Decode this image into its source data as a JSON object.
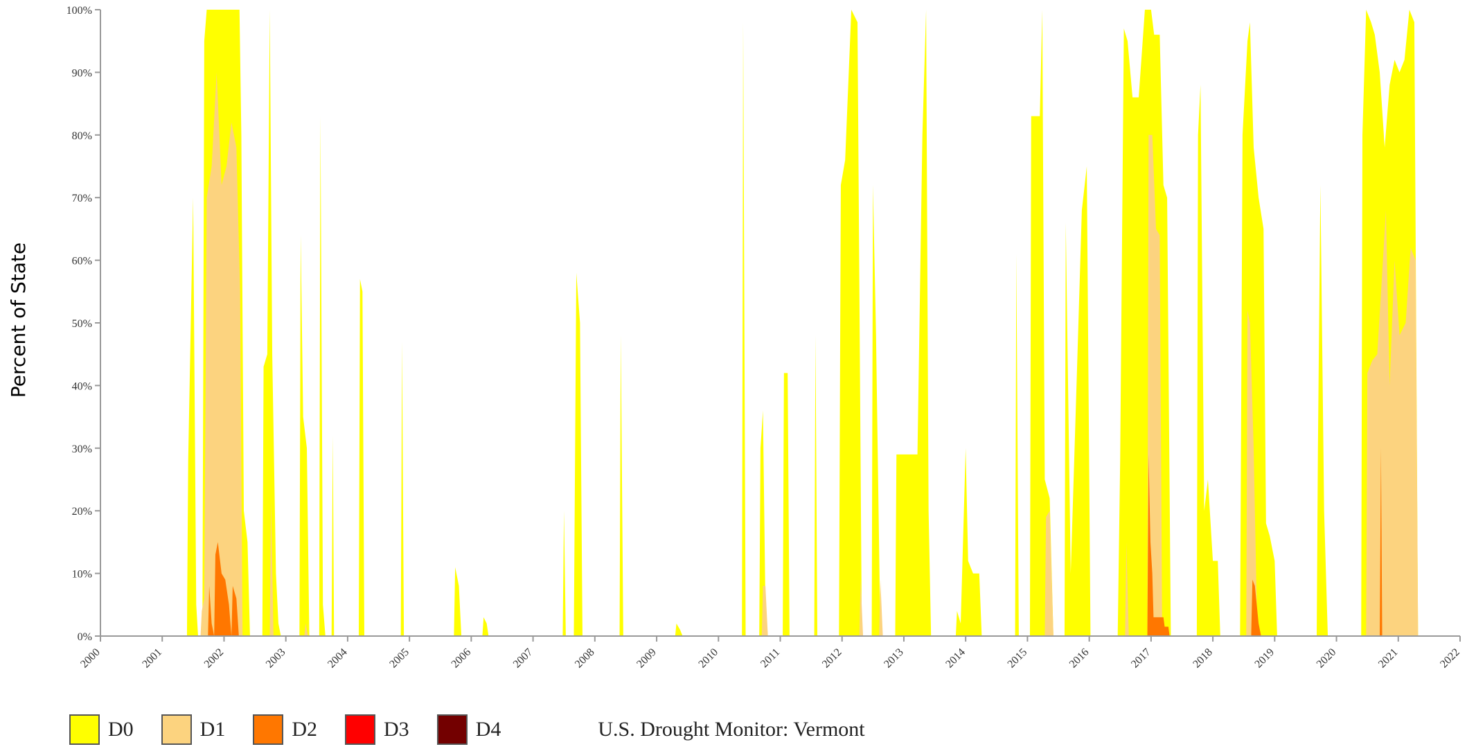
{
  "chart_data": {
    "type": "area",
    "title": "U.S. Drought Monitor: Vermont",
    "ylabel": "Percent of State",
    "xlabel": "",
    "xlim": [
      2000,
      2022
    ],
    "ylim": [
      0,
      100
    ],
    "x_ticks": [
      "2000",
      "2001",
      "2002",
      "2003",
      "2004",
      "2005",
      "2006",
      "2007",
      "2008",
      "2009",
      "2010",
      "2011",
      "2012",
      "2013",
      "2014",
      "2015",
      "2016",
      "2017",
      "2018",
      "2019",
      "2020",
      "2021",
      "2022"
    ],
    "y_ticks": [
      "0%",
      "10%",
      "20%",
      "30%",
      "40%",
      "50%",
      "60%",
      "70%",
      "80%",
      "90%",
      "100%"
    ],
    "legend_position": "bottom",
    "grid": false,
    "colors": {
      "D0": "#ffff00",
      "D1": "#fcd37f",
      "D2": "#ff7700",
      "D3": "#ff0000",
      "D4": "#730000"
    },
    "series": [
      {
        "name": "D0",
        "points": [
          [
            2001.4,
            0
          ],
          [
            2001.42,
            28
          ],
          [
            2001.5,
            70
          ],
          [
            2001.55,
            5
          ],
          [
            2001.58,
            0
          ],
          [
            2001.65,
            0
          ],
          [
            2001.68,
            95
          ],
          [
            2001.72,
            100
          ],
          [
            2002.25,
            100
          ],
          [
            2002.28,
            80
          ],
          [
            2002.32,
            20
          ],
          [
            2002.38,
            15
          ],
          [
            2002.42,
            0
          ],
          [
            2002.62,
            0
          ],
          [
            2002.64,
            43
          ],
          [
            2002.7,
            45
          ],
          [
            2002.74,
            100
          ],
          [
            2002.78,
            45
          ],
          [
            2002.84,
            10
          ],
          [
            2002.88,
            2
          ],
          [
            2002.92,
            0
          ],
          [
            2003.22,
            0
          ],
          [
            2003.24,
            64
          ],
          [
            2003.28,
            35
          ],
          [
            2003.34,
            30
          ],
          [
            2003.38,
            0
          ],
          [
            2003.54,
            0
          ],
          [
            2003.56,
            83
          ],
          [
            2003.6,
            5
          ],
          [
            2003.64,
            0
          ],
          [
            2003.74,
            0
          ],
          [
            2003.76,
            32
          ],
          [
            2003.78,
            0
          ],
          [
            2004.18,
            0
          ],
          [
            2004.2,
            57
          ],
          [
            2004.24,
            55
          ],
          [
            2004.27,
            0
          ],
          [
            2004.86,
            0
          ],
          [
            2004.88,
            47
          ],
          [
            2004.91,
            0
          ],
          [
            2005.72,
            0
          ],
          [
            2005.74,
            11
          ],
          [
            2005.8,
            8
          ],
          [
            2005.84,
            0
          ],
          [
            2006.18,
            0
          ],
          [
            2006.2,
            3
          ],
          [
            2006.25,
            2
          ],
          [
            2006.28,
            0
          ],
          [
            2007.48,
            0
          ],
          [
            2007.5,
            20
          ],
          [
            2007.53,
            0
          ],
          [
            2007.66,
            0
          ],
          [
            2007.7,
            58
          ],
          [
            2007.76,
            50
          ],
          [
            2007.8,
            0
          ],
          [
            2008.4,
            0
          ],
          [
            2008.42,
            48
          ],
          [
            2008.46,
            0
          ],
          [
            2009.3,
            0
          ],
          [
            2009.32,
            2
          ],
          [
            2009.38,
            1
          ],
          [
            2009.42,
            0
          ],
          [
            2010.38,
            0
          ],
          [
            2010.4,
            98
          ],
          [
            2010.44,
            0
          ],
          [
            2010.66,
            0
          ],
          [
            2010.68,
            30
          ],
          [
            2010.72,
            36
          ],
          [
            2010.76,
            5
          ],
          [
            2010.8,
            0
          ],
          [
            2011.04,
            0
          ],
          [
            2011.06,
            42
          ],
          [
            2011.12,
            42
          ],
          [
            2011.15,
            0
          ],
          [
            2011.55,
            0
          ],
          [
            2011.57,
            48
          ],
          [
            2011.6,
            0
          ],
          [
            2011.95,
            0
          ],
          [
            2011.98,
            72
          ],
          [
            2012.05,
            76
          ],
          [
            2012.15,
            100
          ],
          [
            2012.25,
            98
          ],
          [
            2012.32,
            0
          ],
          [
            2012.48,
            0
          ],
          [
            2012.5,
            72
          ],
          [
            2012.55,
            48
          ],
          [
            2012.62,
            0
          ],
          [
            2012.86,
            0
          ],
          [
            2012.88,
            29
          ],
          [
            2013.22,
            29
          ],
          [
            2013.3,
            80
          ],
          [
            2013.36,
            100
          ],
          [
            2013.4,
            20
          ],
          [
            2013.44,
            0
          ],
          [
            2013.84,
            0
          ],
          [
            2013.86,
            4
          ],
          [
            2013.92,
            2
          ],
          [
            2014.0,
            30
          ],
          [
            2014.04,
            12
          ],
          [
            2014.12,
            10
          ],
          [
            2014.22,
            10
          ],
          [
            2014.26,
            0
          ],
          [
            2014.8,
            0
          ],
          [
            2014.82,
            61
          ],
          [
            2014.86,
            0
          ],
          [
            2015.04,
            0
          ],
          [
            2015.06,
            83
          ],
          [
            2015.2,
            83
          ],
          [
            2015.24,
            100
          ],
          [
            2015.28,
            25
          ],
          [
            2015.36,
            22
          ],
          [
            2015.42,
            0
          ],
          [
            2015.6,
            0
          ],
          [
            2015.62,
            66
          ],
          [
            2015.7,
            10
          ],
          [
            2015.8,
            42
          ],
          [
            2015.88,
            68
          ],
          [
            2015.96,
            75
          ],
          [
            2016.02,
            0
          ],
          [
            2016.46,
            0
          ],
          [
            2016.5,
            28
          ],
          [
            2016.56,
            97
          ],
          [
            2016.62,
            95
          ],
          [
            2016.7,
            86
          ],
          [
            2016.8,
            86
          ],
          [
            2016.9,
            100
          ],
          [
            2017.0,
            100
          ],
          [
            2017.05,
            96
          ],
          [
            2017.14,
            96
          ],
          [
            2017.2,
            72
          ],
          [
            2017.26,
            70
          ],
          [
            2017.32,
            0
          ],
          [
            2017.74,
            0
          ],
          [
            2017.76,
            80
          ],
          [
            2017.8,
            88
          ],
          [
            2017.86,
            20
          ],
          [
            2017.92,
            25
          ],
          [
            2018.0,
            12
          ],
          [
            2018.08,
            12
          ],
          [
            2018.12,
            0
          ],
          [
            2018.44,
            0
          ],
          [
            2018.48,
            80
          ],
          [
            2018.56,
            95
          ],
          [
            2018.6,
            98
          ],
          [
            2018.66,
            78
          ],
          [
            2018.74,
            70
          ],
          [
            2018.82,
            65
          ],
          [
            2018.86,
            18
          ],
          [
            2018.92,
            16
          ],
          [
            2019.0,
            12
          ],
          [
            2019.04,
            0
          ],
          [
            2019.68,
            0
          ],
          [
            2019.7,
            30
          ],
          [
            2019.74,
            72
          ],
          [
            2019.8,
            20
          ],
          [
            2019.86,
            0
          ],
          [
            2020.4,
            0
          ],
          [
            2020.42,
            80
          ],
          [
            2020.48,
            100
          ],
          [
            2020.56,
            98
          ],
          [
            2020.62,
            96
          ],
          [
            2020.7,
            90
          ],
          [
            2020.78,
            78
          ],
          [
            2020.86,
            88
          ],
          [
            2020.94,
            92
          ],
          [
            2021.02,
            90
          ],
          [
            2021.1,
            92
          ],
          [
            2021.18,
            100
          ],
          [
            2021.26,
            98
          ],
          [
            2021.32,
            0
          ]
        ]
      },
      {
        "name": "D1",
        "points": [
          [
            2001.62,
            0
          ],
          [
            2001.64,
            4
          ],
          [
            2001.68,
            6
          ],
          [
            2001.72,
            70
          ],
          [
            2001.8,
            75
          ],
          [
            2001.88,
            90
          ],
          [
            2001.96,
            72
          ],
          [
            2002.04,
            75
          ],
          [
            2002.12,
            82
          ],
          [
            2002.2,
            78
          ],
          [
            2002.26,
            55
          ],
          [
            2002.3,
            0
          ],
          [
            2002.74,
            0
          ],
          [
            2002.76,
            22
          ],
          [
            2002.8,
            0
          ],
          [
            2003.3,
            0
          ],
          [
            2003.32,
            2
          ],
          [
            2003.36,
            0
          ],
          [
            2010.7,
            0
          ],
          [
            2010.72,
            8
          ],
          [
            2010.76,
            8
          ],
          [
            2010.8,
            0
          ],
          [
            2012.28,
            0
          ],
          [
            2012.3,
            9
          ],
          [
            2012.34,
            0
          ],
          [
            2012.6,
            0
          ],
          [
            2012.62,
            9
          ],
          [
            2012.66,
            0
          ],
          [
            2015.28,
            0
          ],
          [
            2015.3,
            19
          ],
          [
            2015.36,
            20
          ],
          [
            2015.42,
            0
          ],
          [
            2016.58,
            0
          ],
          [
            2016.6,
            15
          ],
          [
            2016.64,
            0
          ],
          [
            2016.94,
            0
          ],
          [
            2016.96,
            80
          ],
          [
            2017.02,
            80
          ],
          [
            2017.08,
            65
          ],
          [
            2017.14,
            64
          ],
          [
            2017.18,
            0
          ],
          [
            2018.54,
            0
          ],
          [
            2018.56,
            52
          ],
          [
            2018.6,
            50
          ],
          [
            2018.66,
            30
          ],
          [
            2018.72,
            0
          ],
          [
            2020.48,
            0
          ],
          [
            2020.5,
            42
          ],
          [
            2020.58,
            44
          ],
          [
            2020.66,
            45
          ],
          [
            2020.74,
            58
          ],
          [
            2020.8,
            68
          ],
          [
            2020.86,
            40
          ],
          [
            2020.94,
            60
          ],
          [
            2021.02,
            48
          ],
          [
            2021.12,
            50
          ],
          [
            2021.2,
            62
          ],
          [
            2021.28,
            60
          ],
          [
            2021.32,
            0
          ]
        ]
      },
      {
        "name": "D2",
        "points": [
          [
            2001.74,
            0
          ],
          [
            2001.76,
            8
          ],
          [
            2001.8,
            2
          ],
          [
            2001.84,
            0
          ],
          [
            2001.86,
            13
          ],
          [
            2001.9,
            15
          ],
          [
            2001.96,
            10
          ],
          [
            2002.02,
            9
          ],
          [
            2002.08,
            5
          ],
          [
            2002.12,
            0
          ],
          [
            2002.14,
            8
          ],
          [
            2002.2,
            6
          ],
          [
            2002.24,
            0
          ],
          [
            2016.94,
            0
          ],
          [
            2016.96,
            29
          ],
          [
            2016.99,
            15
          ],
          [
            2017.02,
            10
          ],
          [
            2017.04,
            3
          ],
          [
            2017.14,
            3
          ],
          [
            2017.2,
            3
          ],
          [
            2017.22,
            1.5
          ],
          [
            2017.28,
            1.5
          ],
          [
            2017.3,
            0
          ],
          [
            2018.62,
            0
          ],
          [
            2018.64,
            9
          ],
          [
            2018.68,
            8
          ],
          [
            2018.74,
            2
          ],
          [
            2018.78,
            0
          ],
          [
            2020.7,
            0
          ],
          [
            2020.72,
            30
          ],
          [
            2020.74,
            0
          ]
        ]
      },
      {
        "name": "D3",
        "points": []
      },
      {
        "name": "D4",
        "points": []
      }
    ]
  }
}
